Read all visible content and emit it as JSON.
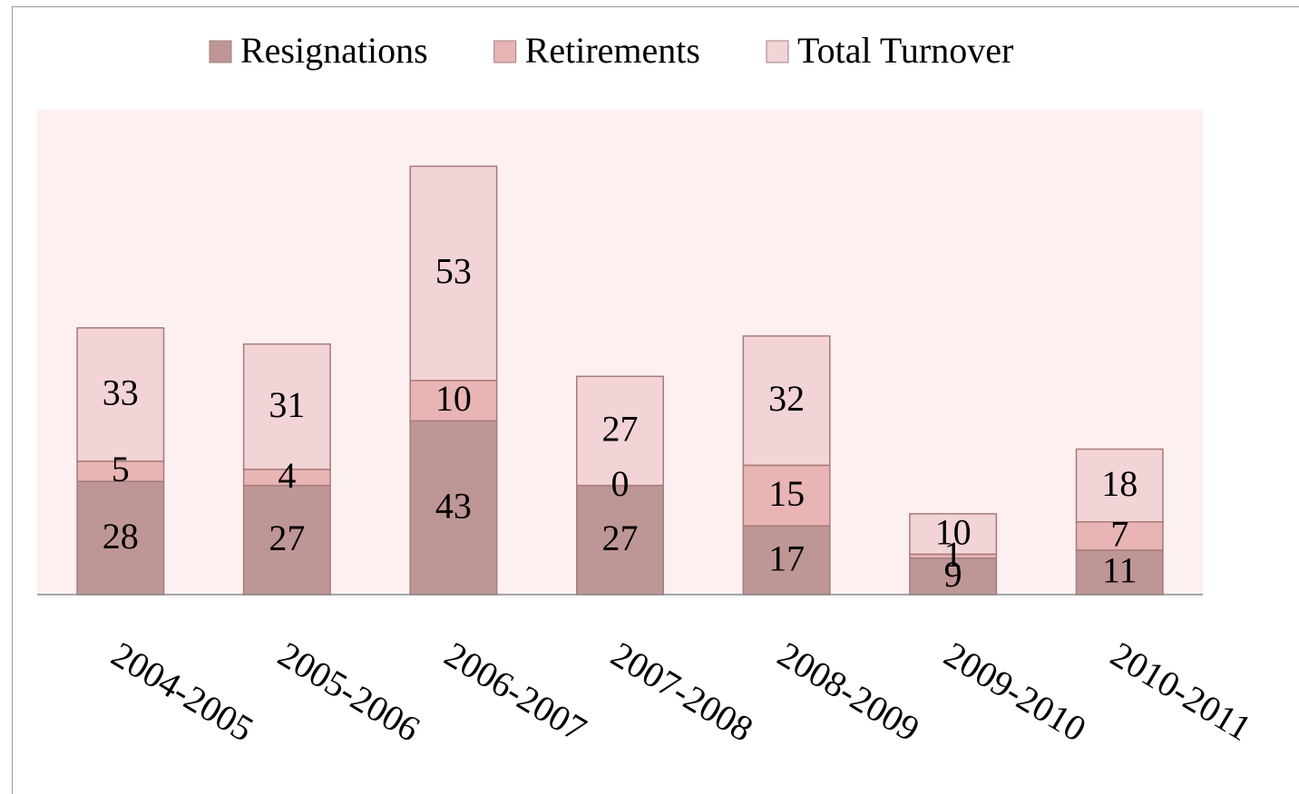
{
  "chart_data": {
    "type": "stacked-bar",
    "categories": [
      "2004-2005",
      "2005-2006",
      "2006-2007",
      "2007-2008",
      "2008-2009",
      "2009-2010",
      "2010-2011"
    ],
    "series": [
      {
        "name": "Resignations",
        "color": "#bf9696",
        "values": [
          28,
          27,
          43,
          27,
          17,
          9,
          11
        ]
      },
      {
        "name": "Retirements",
        "color": "#e8b4b4",
        "values": [
          5,
          4,
          10,
          0,
          15,
          1,
          7
        ]
      },
      {
        "name": "Total Turnover",
        "color": "#f2d4d6",
        "values": [
          33,
          31,
          53,
          27,
          32,
          10,
          18
        ]
      }
    ],
    "ylim": [
      0,
      120
    ],
    "legend": "top",
    "plot_background": "#fcf0f1"
  }
}
